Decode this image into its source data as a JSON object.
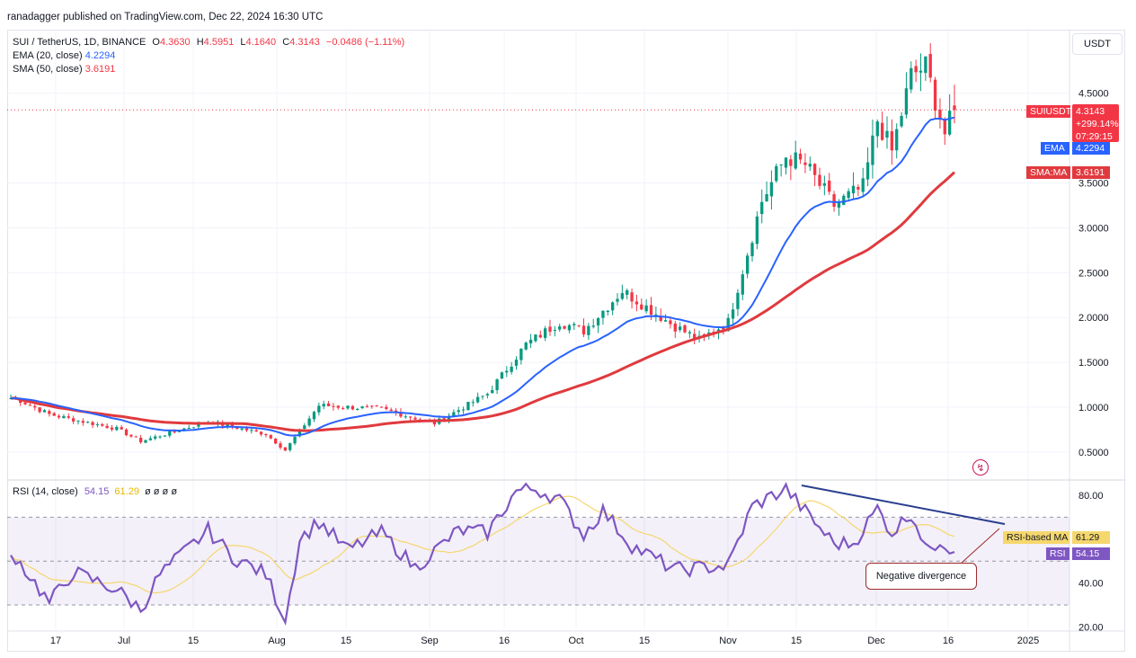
{
  "publisher": "ranadagger published on TradingView.com, Dec 22, 2024 16:30 UTC",
  "unit": "USDT",
  "legend": {
    "symbol": "SUI / TetherUS, 1D, BINANCE",
    "o_label": "O",
    "o": "4.3630",
    "h_label": "H",
    "h": "4.5951",
    "l_label": "L",
    "l": "4.1640",
    "c_label": "C",
    "c": "4.3143",
    "change": "−0.0486 (−1.11%)",
    "ema_label": "EMA (20, close)",
    "ema_value": "4.2294",
    "sma_label": "SMA (50, close)",
    "sma_value": "3.6191"
  },
  "rsi_legend": {
    "label": "RSI (14, close)",
    "rsi_value": "54.15",
    "ma_value": "61.29",
    "extras": "ø ø ø ø"
  },
  "price_tags": {
    "symbol_tag": "SUIUSDT",
    "last_price": "4.3143",
    "change_pct": "+299.14%",
    "countdown": "07:29:15",
    "ema_tag": "EMA",
    "ema_value": "4.2294",
    "sma_tag": "SMA:MA",
    "sma_value": "3.6191"
  },
  "rsi_tags": {
    "ma_tag": "RSI-based MA",
    "ma_value": "61.29",
    "rsi_tag": "RSI",
    "rsi_value": "54.15"
  },
  "annotation": "Negative divergence",
  "colors": {
    "up": "#089981",
    "down": "#f23645",
    "ema": "#2962ff",
    "sma": "#e03a3e",
    "rsi": "#7e57c2",
    "rsi_ma": "#f5d76e",
    "trendline": "#2a3f8f",
    "annotation": "#9c2a2a"
  },
  "chart_data": [
    {
      "type": "candlestick",
      "title": "SUI / TetherUS, 1D, BINANCE",
      "y_ticks": [
        "0.5000",
        "1.0000",
        "1.5000",
        "2.0000",
        "2.5000",
        "3.0000",
        "3.5000",
        "4.5000"
      ],
      "ylim": [
        0.3,
        5.0
      ],
      "x_ticks": [
        "17",
        "Jul",
        "15",
        "Aug",
        "15",
        "Sep",
        "16",
        "Oct",
        "15",
        "Nov",
        "15",
        "Dec",
        "16",
        "2025"
      ],
      "series": [
        {
          "name": "EMA (20, close)",
          "last": 4.2294
        },
        {
          "name": "SMA (50, close)",
          "last": 3.6191
        }
      ],
      "ohlc_anchors": [
        [
          "Jun 10",
          1.1
        ],
        [
          "Jun 17",
          0.92
        ],
        [
          "Jul 1",
          0.76
        ],
        [
          "Jul 6",
          0.62
        ],
        [
          "Jul 20",
          0.84
        ],
        [
          "Aug 1",
          0.7
        ],
        [
          "Aug 5",
          0.52
        ],
        [
          "Aug 12",
          1.02
        ],
        [
          "Aug 25",
          0.98
        ],
        [
          "Sep 5",
          0.82
        ],
        [
          "Sep 16",
          1.15
        ],
        [
          "Sep 24",
          1.7
        ],
        [
          "Oct 1",
          1.95
        ],
        [
          "Oct 6",
          1.85
        ],
        [
          "Oct 14",
          2.3
        ],
        [
          "Oct 25",
          1.9
        ],
        [
          "Oct 30",
          1.75
        ],
        [
          "Nov 5",
          1.95
        ],
        [
          "Nov 12",
          3.3
        ],
        [
          "Nov 17",
          3.8
        ],
        [
          "Nov 21",
          3.7
        ],
        [
          "Nov 27",
          3.25
        ],
        [
          "Dec 3",
          3.45
        ],
        [
          "Dec 6",
          4.2
        ],
        [
          "Dec 9",
          3.85
        ],
        [
          "Dec 13",
          4.7
        ],
        [
          "Dec 16",
          4.8
        ],
        [
          "Dec 20",
          4.05
        ],
        [
          "Dec 22",
          4.3143
        ]
      ]
    },
    {
      "type": "line",
      "title": "RSI (14, close)",
      "y_ticks": [
        "20.00",
        "40.00",
        "80.00"
      ],
      "ylim": [
        20,
        85
      ],
      "series": [
        {
          "name": "RSI",
          "last": 54.15
        },
        {
          "name": "RSI-based MA",
          "last": 61.29
        }
      ],
      "rsi_anchors": [
        [
          "Jun 10",
          52
        ],
        [
          "Jun 17",
          31
        ],
        [
          "Jun 22",
          45
        ],
        [
          "Jul 1",
          37
        ],
        [
          "Jul 6",
          28
        ],
        [
          "Jul 10",
          44
        ],
        [
          "Jul 20",
          64
        ],
        [
          "Jul 25",
          52
        ],
        [
          "Aug 1",
          44
        ],
        [
          "Aug 5",
          23
        ],
        [
          "Aug 8",
          60
        ],
        [
          "Aug 12",
          68
        ],
        [
          "Aug 18",
          55
        ],
        [
          "Aug 25",
          63
        ],
        [
          "Sep 1",
          47
        ],
        [
          "Sep 10",
          64
        ],
        [
          "Sep 16",
          63
        ],
        [
          "Sep 22",
          82
        ],
        [
          "Sep 26",
          83
        ],
        [
          "Oct 1",
          78
        ],
        [
          "Oct 6",
          62
        ],
        [
          "Oct 10",
          73
        ],
        [
          "Oct 16",
          57
        ],
        [
          "Oct 25",
          46
        ],
        [
          "Nov 5",
          48
        ],
        [
          "Nov 10",
          75
        ],
        [
          "Nov 17",
          83
        ],
        [
          "Nov 22",
          70
        ],
        [
          "Nov 27",
          58
        ],
        [
          "Dec 1",
          58
        ],
        [
          "Dec 6",
          74
        ],
        [
          "Dec 9",
          63
        ],
        [
          "Dec 13",
          72
        ],
        [
          "Dec 17",
          53
        ],
        [
          "Dec 19",
          60
        ],
        [
          "Dec 22",
          54.15
        ]
      ],
      "overbought": 70,
      "oversold": 30,
      "annotation": "Negative divergence"
    }
  ]
}
